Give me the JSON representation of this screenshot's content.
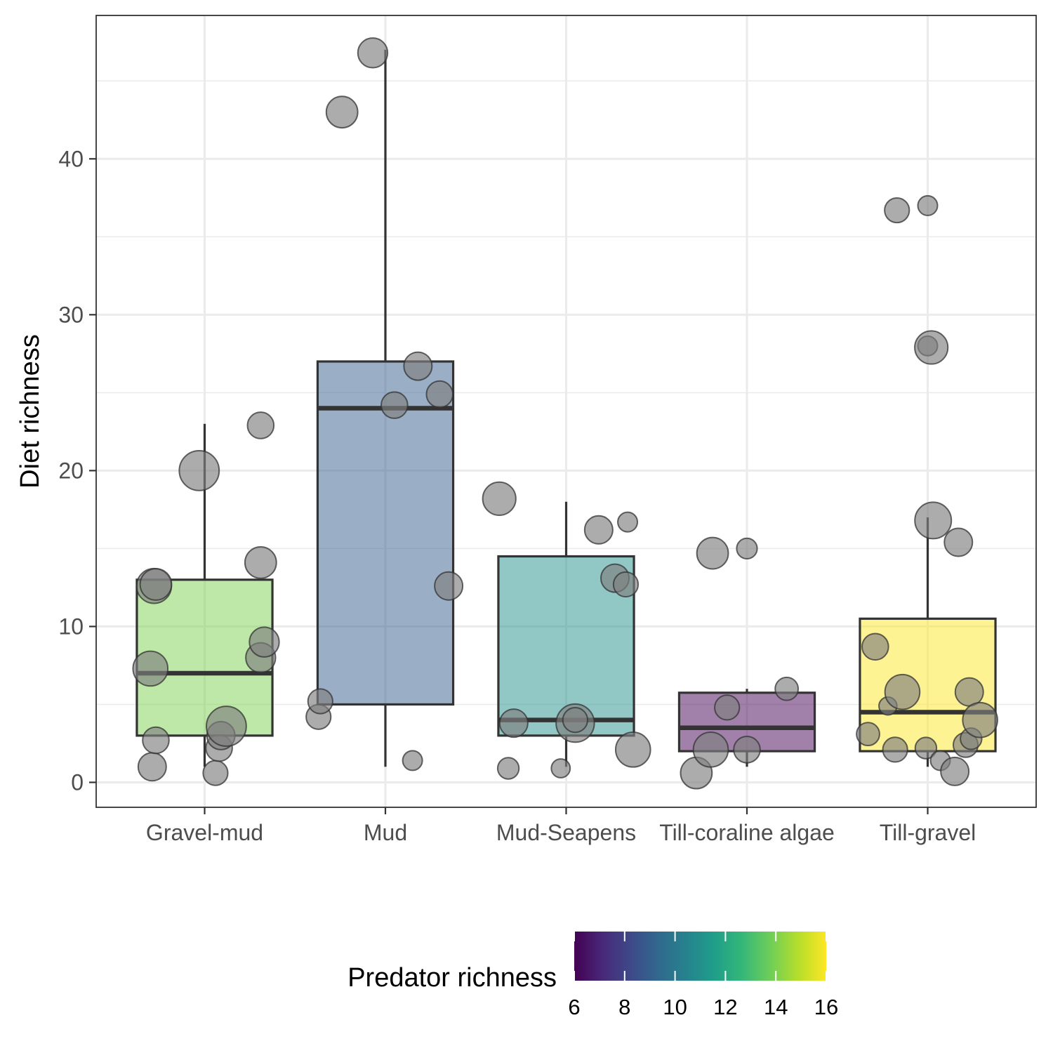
{
  "chart_data": {
    "type": "boxplot",
    "xlabel": "",
    "ylabel": "Diet richness",
    "ylim": [
      -1.6,
      49.2
    ],
    "yticks": [
      0,
      10,
      20,
      30,
      40
    ],
    "ytick_labels": [
      "0",
      "10",
      "20",
      "30",
      "40"
    ],
    "grid": true,
    "categories": [
      "Gravel-mud",
      "Mud",
      "Mud-Seapens",
      "Till-coraline algae",
      "Till-gravel"
    ],
    "boxes": [
      {
        "category": "Gravel-mud",
        "whisker_low": 1.0,
        "q1": 3.0,
        "median": 7.0,
        "q3": 13.0,
        "whisker_high": 23.0,
        "predator_richness": 14
      },
      {
        "category": "Mud",
        "whisker_low": 1.0,
        "q1": 5.0,
        "median": 24.0,
        "q3": 27.0,
        "whisker_high": 47.0,
        "predator_richness": 9
      },
      {
        "category": "Mud-Seapens",
        "whisker_low": 1.0,
        "q1": 3.0,
        "median": 4.0,
        "q3": 14.5,
        "whisker_high": 18.0,
        "predator_richness": 11
      },
      {
        "category": "Till-coraline algae",
        "whisker_low": 1.0,
        "q1": 2.0,
        "median": 3.5,
        "q3": 5.75,
        "whisker_high": 6.0,
        "predator_richness": 6
      },
      {
        "category": "Till-gravel",
        "whisker_low": 1.0,
        "q1": 2.0,
        "median": 4.5,
        "q3": 10.5,
        "whisker_high": 17.0,
        "predator_richness": 16
      }
    ],
    "points": [
      {
        "category": "Gravel-mud",
        "jitter": -0.3,
        "y": 7.3,
        "size": 1.4
      },
      {
        "category": "Gravel-mud",
        "jitter": -0.29,
        "y": 1.0,
        "size": 1.0
      },
      {
        "category": "Gravel-mud",
        "jitter": -0.28,
        "y": 12.6,
        "size": 1.4
      },
      {
        "category": "Gravel-mud",
        "jitter": -0.27,
        "y": 12.7,
        "size": 1.2
      },
      {
        "category": "Gravel-mud",
        "jitter": -0.27,
        "y": 2.7,
        "size": 0.9
      },
      {
        "category": "Gravel-mud",
        "jitter": -0.03,
        "y": 20.0,
        "size": 1.7
      },
      {
        "category": "Gravel-mud",
        "jitter": 0.06,
        "y": 0.6,
        "size": 0.8
      },
      {
        "category": "Gravel-mud",
        "jitter": 0.08,
        "y": 2.2,
        "size": 0.9
      },
      {
        "category": "Gravel-mud",
        "jitter": 0.09,
        "y": 3.0,
        "size": 1.0
      },
      {
        "category": "Gravel-mud",
        "jitter": 0.12,
        "y": 3.6,
        "size": 1.7
      },
      {
        "category": "Gravel-mud",
        "jitter": 0.31,
        "y": 14.1,
        "size": 1.2
      },
      {
        "category": "Gravel-mud",
        "jitter": 0.31,
        "y": 8.0,
        "size": 1.1
      },
      {
        "category": "Gravel-mud",
        "jitter": 0.31,
        "y": 22.9,
        "size": 0.9
      },
      {
        "category": "Gravel-mud",
        "jitter": 0.33,
        "y": 9.0,
        "size": 1.1
      },
      {
        "category": "Mud",
        "jitter": -0.37,
        "y": 4.2,
        "size": 0.8
      },
      {
        "category": "Mud",
        "jitter": -0.36,
        "y": 5.2,
        "size": 0.8
      },
      {
        "category": "Mud",
        "jitter": -0.24,
        "y": 43.0,
        "size": 1.2
      },
      {
        "category": "Mud",
        "jitter": -0.07,
        "y": 46.8,
        "size": 1.1
      },
      {
        "category": "Mud",
        "jitter": 0.05,
        "y": 24.2,
        "size": 0.9
      },
      {
        "category": "Mud",
        "jitter": 0.15,
        "y": 1.4,
        "size": 0.5
      },
      {
        "category": "Mud",
        "jitter": 0.18,
        "y": 26.7,
        "size": 1.0
      },
      {
        "category": "Mud",
        "jitter": 0.3,
        "y": 24.9,
        "size": 0.9
      },
      {
        "category": "Mud",
        "jitter": 0.35,
        "y": 12.6,
        "size": 1.0
      },
      {
        "category": "Mud-Seapens",
        "jitter": -0.37,
        "y": 18.2,
        "size": 1.3
      },
      {
        "category": "Mud-Seapens",
        "jitter": -0.32,
        "y": 0.9,
        "size": 0.6
      },
      {
        "category": "Mud-Seapens",
        "jitter": -0.29,
        "y": 3.8,
        "size": 1.0
      },
      {
        "category": "Mud-Seapens",
        "jitter": -0.03,
        "y": 0.9,
        "size": 0.45
      },
      {
        "category": "Mud-Seapens",
        "jitter": 0.05,
        "y": 3.8,
        "size": 1.6
      },
      {
        "category": "Mud-Seapens",
        "jitter": 0.05,
        "y": 4.0,
        "size": 0.8
      },
      {
        "category": "Mud-Seapens",
        "jitter": 0.18,
        "y": 16.2,
        "size": 1.0
      },
      {
        "category": "Mud-Seapens",
        "jitter": 0.27,
        "y": 13.1,
        "size": 1.0
      },
      {
        "category": "Mud-Seapens",
        "jitter": 0.33,
        "y": 12.7,
        "size": 0.8
      },
      {
        "category": "Mud-Seapens",
        "jitter": 0.34,
        "y": 16.7,
        "size": 0.5
      },
      {
        "category": "Mud-Seapens",
        "jitter": 0.37,
        "y": 2.1,
        "size": 1.4
      },
      {
        "category": "Till-coraline algae",
        "jitter": -0.28,
        "y": 0.6,
        "size": 1.2
      },
      {
        "category": "Till-coraline algae",
        "jitter": -0.2,
        "y": 2.1,
        "size": 1.4
      },
      {
        "category": "Till-coraline algae",
        "jitter": -0.19,
        "y": 14.7,
        "size": 1.2
      },
      {
        "category": "Till-coraline algae",
        "jitter": -0.11,
        "y": 4.8,
        "size": 0.8
      },
      {
        "category": "Till-coraline algae",
        "jitter": 0.0,
        "y": 2.1,
        "size": 0.9
      },
      {
        "category": "Till-coraline algae",
        "jitter": 0.0,
        "y": 15.0,
        "size": 0.55
      },
      {
        "category": "Till-coraline algae",
        "jitter": 0.22,
        "y": 6.0,
        "size": 0.7
      },
      {
        "category": "Till-gravel",
        "jitter": -0.33,
        "y": 3.1,
        "size": 0.7
      },
      {
        "category": "Till-gravel",
        "jitter": -0.29,
        "y": 8.7,
        "size": 0.9
      },
      {
        "category": "Till-gravel",
        "jitter": -0.22,
        "y": 4.9,
        "size": 0.4
      },
      {
        "category": "Till-gravel",
        "jitter": -0.18,
        "y": 2.1,
        "size": 0.8
      },
      {
        "category": "Till-gravel",
        "jitter": -0.17,
        "y": 36.7,
        "size": 0.8
      },
      {
        "category": "Till-gravel",
        "jitter": -0.14,
        "y": 5.8,
        "size": 1.4
      },
      {
        "category": "Till-gravel",
        "jitter": 0.0,
        "y": 28.0,
        "size": 0.5
      },
      {
        "category": "Till-gravel",
        "jitter": 0.0,
        "y": 37.0,
        "size": 0.5
      },
      {
        "category": "Till-gravel",
        "jitter": -0.01,
        "y": 2.2,
        "size": 0.6
      },
      {
        "category": "Till-gravel",
        "jitter": 0.02,
        "y": 27.9,
        "size": 1.3
      },
      {
        "category": "Till-gravel",
        "jitter": 0.03,
        "y": 16.8,
        "size": 1.5
      },
      {
        "category": "Till-gravel",
        "jitter": 0.07,
        "y": 1.4,
        "size": 0.5
      },
      {
        "category": "Till-gravel",
        "jitter": 0.15,
        "y": 0.7,
        "size": 1.0
      },
      {
        "category": "Till-gravel",
        "jitter": 0.17,
        "y": 15.4,
        "size": 1.0
      },
      {
        "category": "Till-gravel",
        "jitter": 0.21,
        "y": 2.4,
        "size": 0.8
      },
      {
        "category": "Till-gravel",
        "jitter": 0.23,
        "y": 5.8,
        "size": 1.0
      },
      {
        "category": "Till-gravel",
        "jitter": 0.24,
        "y": 2.8,
        "size": 0.6
      },
      {
        "category": "Till-gravel",
        "jitter": 0.29,
        "y": 4.0,
        "size": 1.4
      }
    ],
    "point_color": "#808080",
    "legend": {
      "title": "Predator richness",
      "position": "bottom",
      "min": 6,
      "max": 16,
      "ticks": [
        6,
        8,
        10,
        12,
        14,
        16
      ],
      "tick_labels": [
        "6",
        "8",
        "10",
        "12",
        "14",
        "16"
      ],
      "colormap": [
        "#440154",
        "#482878",
        "#3e4989",
        "#31688e",
        "#26828e",
        "#1f9e89",
        "#35b779",
        "#6ece58",
        "#b5de2b",
        "#fde725"
      ]
    }
  }
}
